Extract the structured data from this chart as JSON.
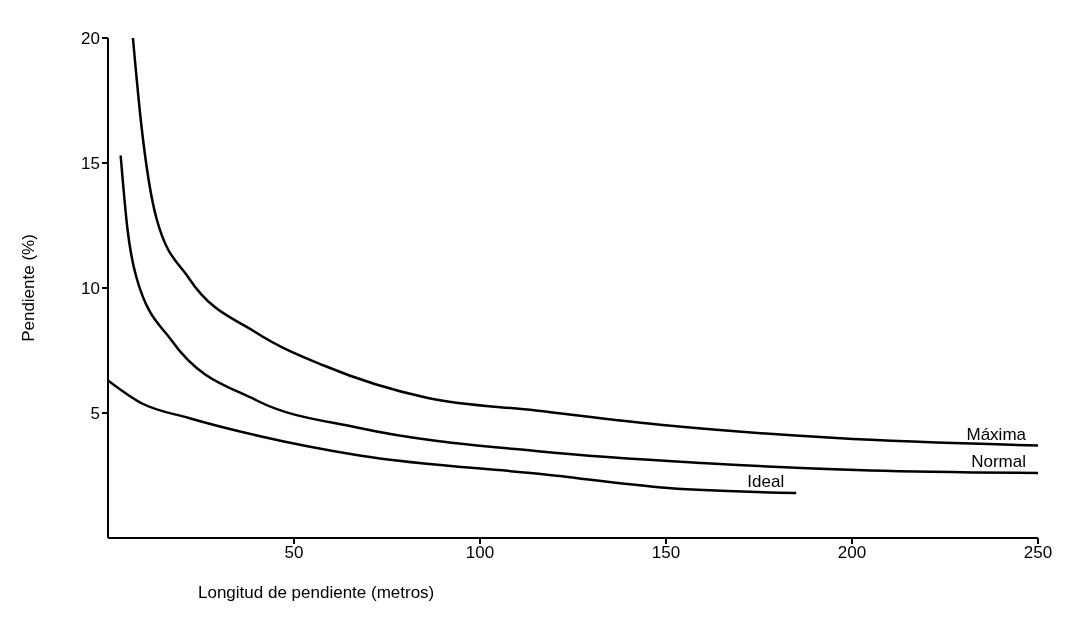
{
  "chart_data": {
    "type": "line",
    "xlabel": "Longitud de pendiente (metros)",
    "ylabel": "Pendiente (%)",
    "xlim": [
      0,
      250
    ],
    "xticks": [
      50,
      100,
      150,
      200,
      250
    ],
    "ylim": [
      0,
      20
    ],
    "yticks": [
      5,
      10,
      15,
      20
    ],
    "grid": false,
    "legend": false,
    "marker": "none",
    "line_style": "solid",
    "series": [
      {
        "name": "Máxima",
        "color": "#000000",
        "x": [
          6.7,
          8.9,
          13,
          21.7,
          40,
          58,
          86,
          115,
          150.6,
          195.8,
          250
        ],
        "values": [
          20,
          16.6,
          12.8,
          10.4,
          8.2,
          6.9,
          5.6,
          5.1,
          4.5,
          4.0,
          3.7
        ]
      },
      {
        "name": "Normal",
        "color": "#000000",
        "x": [
          3.4,
          5.2,
          7.5,
          17.1,
          40,
          67.6,
          117,
          159.6,
          205,
          250
        ],
        "values": [
          15.3,
          12.4,
          10.5,
          7.9,
          5.5,
          4.4,
          3.45,
          3.0,
          2.7,
          2.6
        ]
      },
      {
        "name": "Ideal",
        "color": "#000000",
        "x": [
          0,
          8.9,
          21.7,
          40,
          67.6,
          117,
          150.6,
          185
        ],
        "values": [
          6.3,
          5.4,
          4.8,
          4.1,
          3.3,
          2.55,
          2.0,
          1.8
        ]
      }
    ]
  }
}
